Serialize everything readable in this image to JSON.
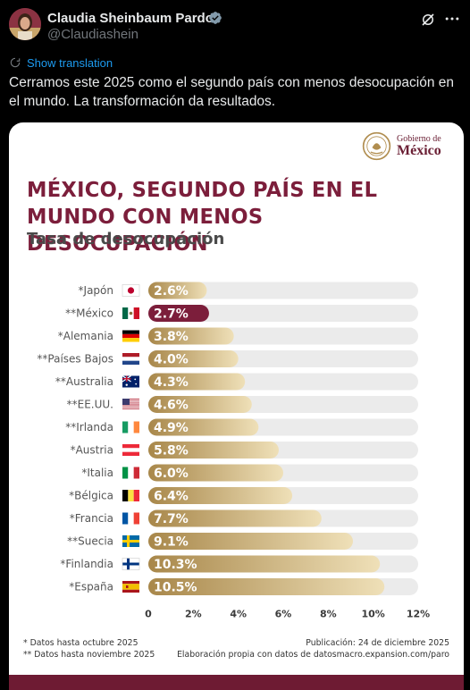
{
  "post": {
    "author_name": "Claudia Sheinbaum Pardo",
    "author_handle": "@Claudiashein",
    "show_translation": "Show translation",
    "text": "Cerramos este 2025 como el segundo país con menos desocupación en el mundo. La transformación da resultados."
  },
  "icons": {
    "verified": "verified-badge-icon",
    "grok": "grok-icon",
    "more": "more-icon",
    "translate": "translate-icon"
  },
  "infographic": {
    "logo_line1": "Gobierno de",
    "logo_line2": "México",
    "headline_line1": "MÉXICO, SEGUNDO PAÍS EN EL",
    "headline_line2": "MUNDO CON MENOS DESOCUPACIÓN",
    "subtitle": "Tasa de desocupación",
    "footnote1": "* Datos hasta octubre 2025",
    "footnote2": "** Datos hasta noviembre 2025",
    "publication": "Publicación: 24 de diciembre 2025",
    "source": "Elaboración propia con datos de datosmacro.expansion.com/paro",
    "colors": {
      "headline": "#7c1e3b",
      "highlight_bar": "#7c1e3b",
      "bar_gold_dark": "#a8874a",
      "bar_gold_light": "#efe0b8",
      "track": "#ebebeb"
    }
  },
  "chart_data": {
    "type": "bar",
    "orientation": "horizontal",
    "title": "Tasa de desocupación",
    "categories": [
      "*Japón",
      "**México",
      "*Alemania",
      "**Países Bajos",
      "**Australia",
      "**EE.UU.",
      "**Irlanda",
      "*Austria",
      "*Italia",
      "*Bélgica",
      "*Francia",
      "**Suecia",
      "*Finlandia",
      "*España"
    ],
    "values": [
      2.6,
      2.7,
      3.8,
      4.0,
      4.3,
      4.6,
      4.9,
      5.8,
      6.0,
      6.4,
      7.7,
      9.1,
      10.3,
      10.5
    ],
    "value_labels": [
      "2.6%",
      "2.7%",
      "3.8%",
      "4.0%",
      "4.3%",
      "4.6%",
      "4.9%",
      "5.8%",
      "6.0%",
      "6.4%",
      "7.7%",
      "9.1%",
      "10.3%",
      "10.5%"
    ],
    "flags": [
      "japan",
      "mexico",
      "germany",
      "netherlands",
      "australia",
      "usa",
      "ireland",
      "austria",
      "italy",
      "belgium",
      "france",
      "sweden",
      "finland",
      "spain"
    ],
    "highlight": "**México",
    "xlim": [
      0,
      12
    ],
    "xticks": [
      "0",
      "2%",
      "4%",
      "6%",
      "8%",
      "10%",
      "12%"
    ],
    "grid": false
  }
}
